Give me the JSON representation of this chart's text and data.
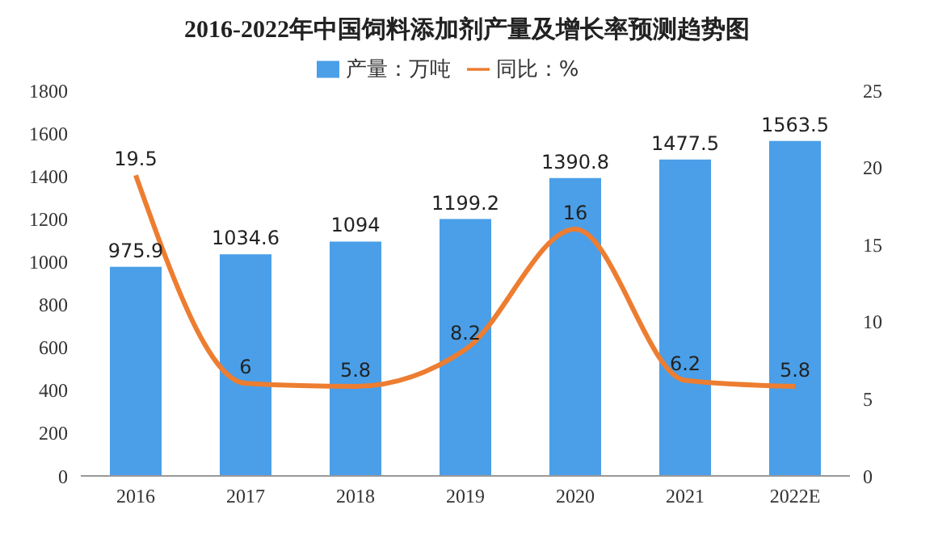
{
  "chart_data": {
    "type": "bar",
    "title": "2016-2022年中国饲料添加剂产量及增长率预测趋势图",
    "categories": [
      "2016",
      "2017",
      "2018",
      "2019",
      "2020",
      "2021",
      "2022E"
    ],
    "series": [
      {
        "name": "产量：万吨",
        "color": "#4a9fe8",
        "values": [
          975.9,
          1034.6,
          1094,
          1199.2,
          1390.8,
          1477.5,
          1563.5
        ]
      },
      {
        "name": "同比：%",
        "type": "line",
        "axis": "y2",
        "color": "#ed7d31",
        "values": [
          19.5,
          6,
          5.8,
          8.2,
          16,
          6.2,
          5.8
        ]
      }
    ],
    "ylim": [
      0,
      1800
    ],
    "yticks": [
      0,
      200,
      400,
      600,
      800,
      1000,
      1200,
      1400,
      1600,
      1800
    ],
    "y2lim": [
      0,
      25
    ],
    "y2ticks": [
      0,
      5,
      10,
      15,
      20,
      25
    ],
    "data_labels": true,
    "legend": "top",
    "grid": false,
    "marker": "none",
    "line_style": "solid"
  }
}
